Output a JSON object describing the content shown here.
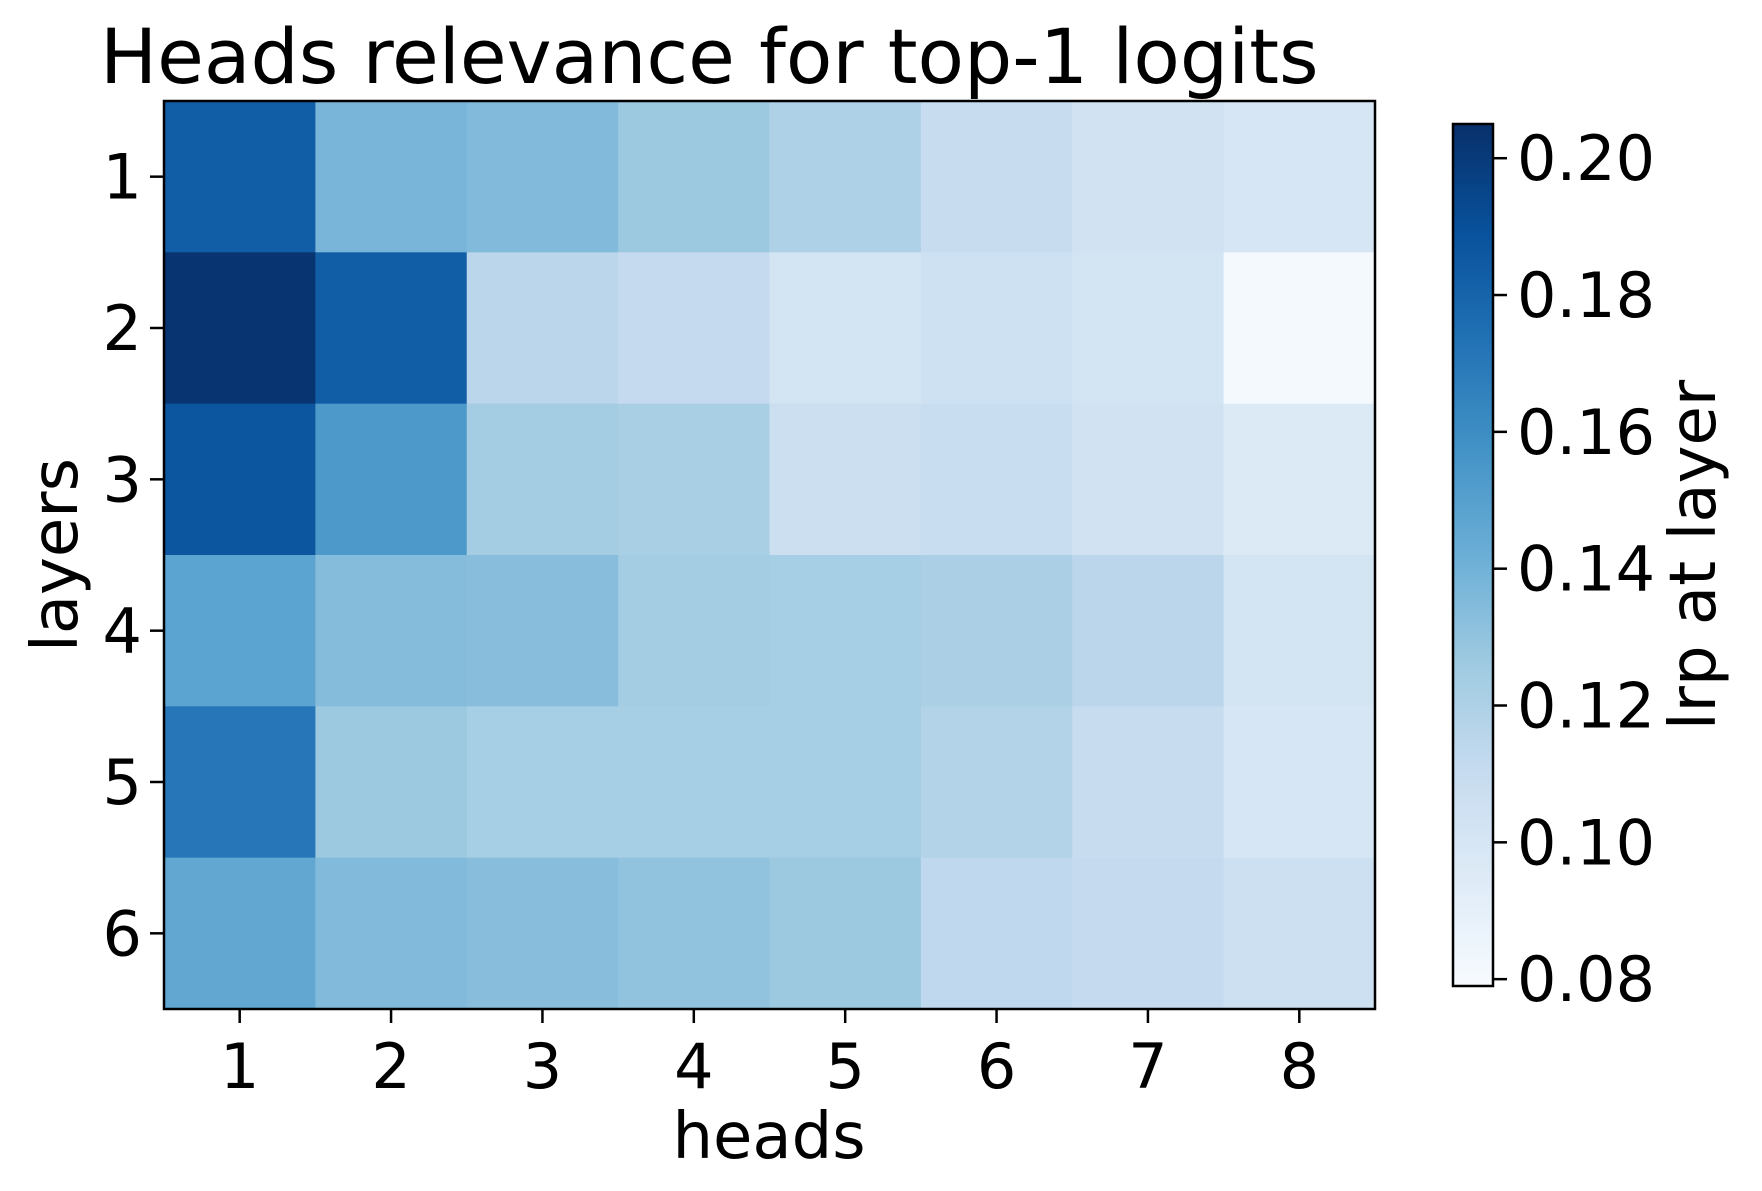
{
  "chart_data": {
    "type": "heatmap",
    "title": "Heads relevance for top-1 logits",
    "xlabel": "heads",
    "ylabel": "layers",
    "x_categories": [
      "1",
      "2",
      "3",
      "4",
      "5",
      "6",
      "7",
      "8"
    ],
    "y_categories": [
      "1",
      "2",
      "3",
      "4",
      "5",
      "6"
    ],
    "values": [
      [
        0.183,
        0.138,
        0.135,
        0.127,
        0.12,
        0.11,
        0.103,
        0.1
      ],
      [
        0.203,
        0.183,
        0.115,
        0.111,
        0.102,
        0.105,
        0.102,
        0.081
      ],
      [
        0.187,
        0.154,
        0.124,
        0.122,
        0.107,
        0.109,
        0.103,
        0.096
      ],
      [
        0.148,
        0.134,
        0.133,
        0.124,
        0.123,
        0.121,
        0.115,
        0.102
      ],
      [
        0.171,
        0.127,
        0.123,
        0.123,
        0.123,
        0.118,
        0.11,
        0.1
      ],
      [
        0.146,
        0.135,
        0.133,
        0.13,
        0.127,
        0.113,
        0.111,
        0.106
      ]
    ],
    "colorbar": {
      "label": "lrp at layer",
      "min": 0.079,
      "max": 0.205,
      "ticks": [
        "0.08",
        "0.10",
        "0.12",
        "0.14",
        "0.16",
        "0.18",
        "0.20"
      ],
      "colormap": "Blues",
      "colors": [
        "#f7fbff",
        "#deebf7",
        "#c6dbef",
        "#9ecae1",
        "#6baed6",
        "#4292c6",
        "#2171b5",
        "#08519c",
        "#08306b"
      ]
    },
    "grid": false
  }
}
